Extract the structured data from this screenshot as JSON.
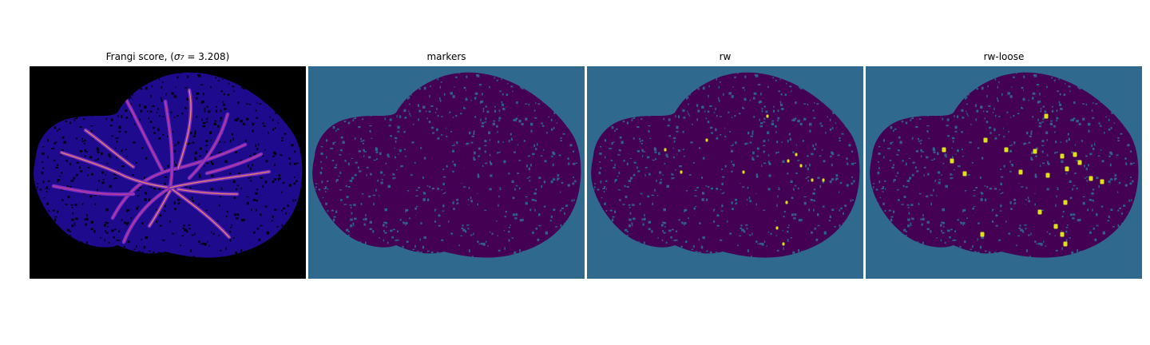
{
  "figure": {
    "panels": [
      {
        "title_prefix": "Frangi score, (",
        "title_symbol": "σ",
        "title_subscript": "7",
        "title_suffix": " = 3.208)",
        "colormap": "magma",
        "background_color": "#000000",
        "tissue_color": "#1d0a8c",
        "vessel_colors": [
          "#7a2bc2",
          "#c83d8f",
          "#f0905a"
        ]
      },
      {
        "title": "markers",
        "colormap": "viridis",
        "background_color": "#30698e",
        "tissue_color": "#440154"
      },
      {
        "title": "rw",
        "colormap": "viridis",
        "background_color": "#30698e",
        "tissue_color": "#440154",
        "highlight_color": "#dde318"
      },
      {
        "title": "rw-loose",
        "colormap": "viridis",
        "background_color": "#30698e",
        "tissue_color": "#440154",
        "highlight_color": "#dde318"
      }
    ]
  }
}
